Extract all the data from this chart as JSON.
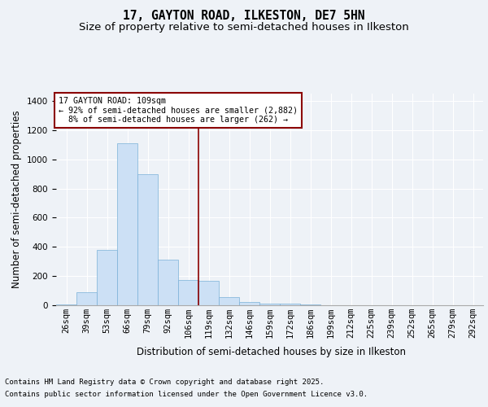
{
  "title_line1": "17, GAYTON ROAD, ILKESTON, DE7 5HN",
  "title_line2": "Size of property relative to semi-detached houses in Ilkeston",
  "xlabel": "Distribution of semi-detached houses by size in Ilkeston",
  "ylabel": "Number of semi-detached properties",
  "annotation_title": "17 GAYTON ROAD: 109sqm",
  "annotation_line2": "← 92% of semi-detached houses are smaller (2,882)",
  "annotation_line3": "8% of semi-detached houses are larger (262) →",
  "footer_line1": "Contains HM Land Registry data © Crown copyright and database right 2025.",
  "footer_line2": "Contains public sector information licensed under the Open Government Licence v3.0.",
  "bin_labels": [
    "26sqm",
    "39sqm",
    "53sqm",
    "66sqm",
    "79sqm",
    "92sqm",
    "106sqm",
    "119sqm",
    "132sqm",
    "146sqm",
    "159sqm",
    "172sqm",
    "186sqm",
    "199sqm",
    "212sqm",
    "225sqm",
    "239sqm",
    "252sqm",
    "265sqm",
    "279sqm",
    "292sqm"
  ],
  "bar_values": [
    5,
    90,
    380,
    1110,
    900,
    310,
    175,
    170,
    55,
    25,
    10,
    10,
    5,
    0,
    0,
    0,
    0,
    0,
    0,
    0,
    0
  ],
  "bar_color": "#cce0f5",
  "bar_edge_color": "#7ab0d8",
  "vline_x": 6.5,
  "vline_color": "#8b0000",
  "annotation_box_color": "#8b0000",
  "background_color": "#eef2f7",
  "ylim": [
    0,
    1450
  ],
  "yticks": [
    0,
    200,
    400,
    600,
    800,
    1000,
    1200,
    1400
  ],
  "grid_color": "#ffffff",
  "title_fontsize": 10.5,
  "subtitle_fontsize": 9.5,
  "axis_label_fontsize": 8.5,
  "tick_fontsize": 7.5,
  "footer_fontsize": 6.5
}
